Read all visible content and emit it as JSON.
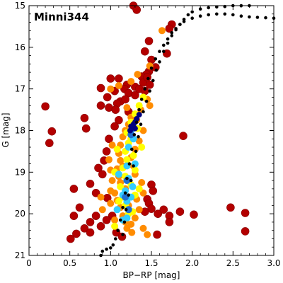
{
  "chart_data": {
    "type": "scatter",
    "title": "Minni344",
    "xlabel": "BP−RP [mag]",
    "ylabel": "G [mag]",
    "xlim": [
      0,
      3.0
    ],
    "ylim": [
      21,
      15
    ],
    "y_inverted": true,
    "x_ticks": [
      0,
      0.5,
      1.0,
      1.5,
      2.0,
      2.5,
      3.0
    ],
    "x_tick_labels": [
      "0",
      "0.5",
      "1.0",
      "1.5",
      "2.0",
      "2.5",
      "3.0"
    ],
    "y_ticks": [
      15,
      16,
      17,
      18,
      19,
      20,
      21
    ],
    "y_tick_labels": [
      "15",
      "16",
      "17",
      "18",
      "19",
      "20",
      "21"
    ],
    "grid": false,
    "colors": {
      "field_star": "#b30000",
      "member_orange": "#ff8c00",
      "member_yellow": "#ffff00",
      "member_cyan": "#33ccff",
      "member_blue": "#1f6fd1",
      "core": "#000080",
      "isochrone": "#000000"
    },
    "series": [
      {
        "kind": "field_stars",
        "color_key": "field_star",
        "points": [
          [
            1.28,
            15.0
          ],
          [
            1.32,
            15.1
          ],
          [
            1.75,
            15.45
          ],
          [
            1.72,
            15.55
          ],
          [
            1.47,
            15.85
          ],
          [
            1.69,
            16.15
          ],
          [
            1.42,
            16.1
          ],
          [
            1.5,
            16.3
          ],
          [
            1.47,
            16.58
          ],
          [
            1.44,
            16.65
          ],
          [
            1.55,
            16.48
          ],
          [
            1.38,
            16.7
          ],
          [
            1.0,
            16.75
          ],
          [
            1.1,
            16.75
          ],
          [
            1.2,
            16.9
          ],
          [
            1.3,
            16.95
          ],
          [
            1.4,
            16.85
          ],
          [
            1.45,
            16.72
          ],
          [
            1.48,
            16.9
          ],
          [
            0.88,
            16.98
          ],
          [
            0.96,
            17.2
          ],
          [
            1.05,
            17.05
          ],
          [
            1.17,
            17.0
          ],
          [
            1.22,
            17.1
          ],
          [
            1.3,
            17.15
          ],
          [
            1.12,
            17.3
          ],
          [
            1.18,
            17.25
          ],
          [
            1.08,
            17.35
          ],
          [
            0.98,
            17.45
          ],
          [
            0.88,
            17.4
          ],
          [
            1.22,
            17.55
          ],
          [
            1.35,
            17.0
          ],
          [
            1.42,
            17.05
          ],
          [
            0.2,
            17.42
          ],
          [
            0.68,
            17.7
          ],
          [
            1.06,
            17.5
          ],
          [
            1.1,
            17.75
          ],
          [
            1.05,
            17.9
          ],
          [
            0.7,
            17.95
          ],
          [
            0.28,
            18.02
          ],
          [
            0.25,
            18.3
          ],
          [
            1.89,
            18.13
          ],
          [
            0.98,
            18.2
          ],
          [
            0.95,
            18.5
          ],
          [
            0.92,
            18.72
          ],
          [
            0.85,
            18.9
          ],
          [
            0.9,
            19.05
          ],
          [
            0.75,
            19.28
          ],
          [
            0.55,
            19.4
          ],
          [
            0.82,
            19.5
          ],
          [
            0.96,
            19.62
          ],
          [
            1.5,
            19.3
          ],
          [
            1.52,
            19.45
          ],
          [
            1.45,
            19.65
          ],
          [
            1.47,
            19.75
          ],
          [
            1.5,
            19.88
          ],
          [
            1.42,
            19.95
          ],
          [
            1.58,
            20.0
          ],
          [
            1.65,
            19.9
          ],
          [
            1.72,
            20.05
          ],
          [
            1.85,
            19.95
          ],
          [
            2.02,
            20.02
          ],
          [
            2.47,
            19.85
          ],
          [
            2.65,
            19.98
          ],
          [
            1.72,
            20.2
          ],
          [
            0.62,
            19.85
          ],
          [
            0.55,
            20.05
          ],
          [
            0.75,
            20.2
          ],
          [
            0.68,
            20.35
          ],
          [
            0.58,
            20.48
          ],
          [
            0.51,
            20.6
          ],
          [
            0.75,
            20.45
          ],
          [
            1.02,
            20.05
          ],
          [
            1.07,
            20.45
          ],
          [
            1.14,
            20.55
          ],
          [
            1.57,
            20.5
          ],
          [
            2.65,
            20.42
          ],
          [
            0.82,
            20.05
          ],
          [
            0.88,
            20.3
          ],
          [
            0.95,
            20.15
          ]
        ]
      },
      {
        "kind": "members",
        "color_key": "member_orange",
        "points": [
          [
            1.63,
            15.6
          ],
          [
            1.48,
            16.45
          ],
          [
            1.33,
            16.65
          ],
          [
            1.25,
            16.82
          ],
          [
            1.1,
            16.92
          ],
          [
            1.0,
            17.0
          ],
          [
            1.2,
            17.45
          ],
          [
            1.37,
            17.5
          ],
          [
            1.25,
            17.68
          ],
          [
            1.22,
            17.85
          ],
          [
            1.18,
            18.0
          ],
          [
            1.15,
            18.15
          ],
          [
            1.12,
            18.35
          ],
          [
            1.1,
            18.55
          ],
          [
            1.12,
            18.72
          ],
          [
            1.08,
            18.92
          ],
          [
            1.1,
            19.1
          ],
          [
            1.12,
            19.25
          ],
          [
            1.05,
            19.5
          ],
          [
            1.08,
            19.68
          ],
          [
            1.12,
            19.85
          ],
          [
            1.15,
            20.05
          ],
          [
            1.18,
            20.2
          ],
          [
            1.2,
            20.35
          ],
          [
            1.02,
            18.35
          ],
          [
            0.98,
            18.7
          ],
          [
            1.0,
            18.95
          ],
          [
            1.02,
            19.2
          ],
          [
            1.0,
            19.45
          ],
          [
            1.05,
            20.15
          ],
          [
            1.25,
            20.25
          ],
          [
            1.3,
            20.1
          ],
          [
            1.35,
            19.9
          ],
          [
            1.32,
            19.65
          ],
          [
            1.4,
            19.5
          ],
          [
            1.38,
            19.25
          ],
          [
            1.3,
            19.05
          ],
          [
            1.28,
            18.85
          ],
          [
            1.25,
            18.65
          ],
          [
            1.3,
            18.45
          ],
          [
            1.35,
            18.25
          ],
          [
            1.4,
            18.0
          ],
          [
            1.32,
            17.75
          ],
          [
            1.45,
            17.25
          ],
          [
            1.48,
            17.4
          ],
          [
            1.4,
            20.35
          ],
          [
            1.45,
            20.5
          ],
          [
            0.9,
            19.9
          ],
          [
            0.88,
            19.6
          ],
          [
            1.0,
            19.75
          ],
          [
            1.15,
            18.85
          ],
          [
            1.18,
            19.4
          ],
          [
            1.22,
            19.8
          ],
          [
            1.26,
            20.45
          ]
        ]
      },
      {
        "kind": "members",
        "color_key": "member_yellow",
        "points": [
          [
            1.4,
            17.2
          ],
          [
            1.35,
            17.4
          ],
          [
            1.3,
            17.6
          ],
          [
            1.25,
            17.8
          ],
          [
            1.2,
            18.05
          ],
          [
            1.22,
            18.3
          ],
          [
            1.18,
            18.5
          ],
          [
            1.2,
            18.7
          ],
          [
            1.15,
            18.9
          ],
          [
            1.18,
            19.1
          ],
          [
            1.12,
            19.35
          ],
          [
            1.15,
            19.6
          ],
          [
            1.18,
            19.8
          ],
          [
            1.22,
            20.0
          ],
          [
            1.25,
            18.2
          ],
          [
            1.28,
            18.6
          ],
          [
            1.3,
            18.95
          ],
          [
            1.25,
            19.3
          ],
          [
            1.3,
            19.55
          ],
          [
            1.08,
            18.45
          ],
          [
            1.05,
            19.0
          ],
          [
            1.1,
            19.7
          ],
          [
            1.35,
            19.4
          ],
          [
            1.33,
            17.95
          ],
          [
            1.27,
            19.95
          ],
          [
            1.05,
            20.3
          ],
          [
            1.38,
            18.4
          ]
        ]
      },
      {
        "kind": "members",
        "color_key": "member_cyan",
        "points": [
          [
            1.25,
            18.0
          ],
          [
            1.22,
            18.4
          ],
          [
            1.2,
            18.85
          ],
          [
            1.22,
            19.15
          ],
          [
            1.18,
            19.45
          ],
          [
            1.2,
            19.7
          ],
          [
            1.1,
            19.05
          ],
          [
            1.15,
            19.55
          ],
          [
            1.25,
            19.6
          ],
          [
            1.15,
            20.15
          ],
          [
            1.28,
            18.2
          ],
          [
            1.3,
            18.8
          ],
          [
            1.27,
            19.35
          ],
          [
            1.08,
            19.9
          ],
          [
            1.2,
            20.1
          ]
        ]
      },
      {
        "kind": "members",
        "color_key": "member_blue",
        "points": [
          [
            1.27,
            17.95
          ],
          [
            1.25,
            18.1
          ],
          [
            1.2,
            19.2
          ],
          [
            1.18,
            19.6
          ],
          [
            1.22,
            19.9
          ]
        ]
      },
      {
        "kind": "core",
        "color_key": "core",
        "points": [
          [
            1.25,
            17.9
          ],
          [
            1.28,
            17.85
          ],
          [
            1.3,
            17.8
          ],
          [
            1.32,
            17.72
          ],
          [
            1.35,
            17.62
          ],
          [
            1.24,
            18.0
          ],
          [
            1.3,
            17.95
          ]
        ]
      }
    ],
    "isochrones": [
      {
        "color_key": "isochrone",
        "points": [
          [
            0.88,
            21.0
          ],
          [
            0.9,
            20.9
          ],
          [
            0.95,
            20.85
          ],
          [
            1.0,
            20.82
          ],
          [
            1.03,
            20.75
          ],
          [
            1.06,
            20.6
          ],
          [
            1.09,
            20.4
          ],
          [
            1.12,
            20.15
          ],
          [
            1.15,
            19.85
          ],
          [
            1.18,
            19.5
          ],
          [
            1.2,
            19.15
          ],
          [
            1.23,
            18.8
          ],
          [
            1.26,
            18.45
          ],
          [
            1.29,
            18.1
          ],
          [
            1.32,
            17.8
          ],
          [
            1.35,
            17.5
          ],
          [
            1.38,
            17.25
          ],
          [
            1.42,
            17.0
          ],
          [
            1.46,
            16.75
          ],
          [
            1.5,
            16.5
          ],
          [
            1.55,
            16.28
          ],
          [
            1.6,
            16.1
          ],
          [
            1.65,
            15.95
          ],
          [
            1.7,
            15.8
          ],
          [
            1.75,
            15.65
          ],
          [
            1.8,
            15.55
          ],
          [
            1.85,
            15.45
          ],
          [
            1.9,
            15.38
          ],
          [
            2.0,
            15.3
          ],
          [
            2.1,
            15.25
          ],
          [
            2.2,
            15.22
          ],
          [
            2.3,
            15.2
          ],
          [
            2.4,
            15.2
          ],
          [
            2.5,
            15.22
          ],
          [
            2.6,
            15.25
          ],
          [
            2.7,
            15.27
          ],
          [
            2.8,
            15.28
          ],
          [
            2.9,
            15.29
          ],
          [
            3.0,
            15.3
          ]
        ]
      },
      {
        "color_key": "isochrone",
        "points": [
          [
            1.15,
            20.5
          ],
          [
            1.17,
            20.2
          ],
          [
            1.19,
            19.9
          ],
          [
            1.22,
            19.55
          ],
          [
            1.25,
            19.2
          ],
          [
            1.28,
            18.85
          ],
          [
            1.31,
            18.5
          ],
          [
            1.34,
            18.15
          ],
          [
            1.37,
            17.85
          ],
          [
            1.4,
            17.55
          ],
          [
            1.44,
            17.3
          ],
          [
            1.48,
            17.05
          ],
          [
            1.52,
            16.8
          ],
          [
            1.56,
            16.55
          ],
          [
            1.6,
            16.35
          ],
          [
            1.65,
            16.1
          ],
          [
            1.7,
            15.9
          ],
          [
            1.75,
            15.72
          ],
          [
            1.8,
            15.58
          ],
          [
            1.85,
            15.45
          ],
          [
            1.9,
            15.33
          ],
          [
            1.95,
            15.22
          ],
          [
            2.0,
            15.15
          ],
          [
            2.1,
            15.08
          ],
          [
            2.2,
            15.05
          ],
          [
            2.3,
            15.03
          ],
          [
            2.4,
            15.02
          ],
          [
            2.5,
            15.0
          ],
          [
            2.6,
            15.0
          ],
          [
            2.7,
            15.0
          ]
        ]
      }
    ]
  }
}
